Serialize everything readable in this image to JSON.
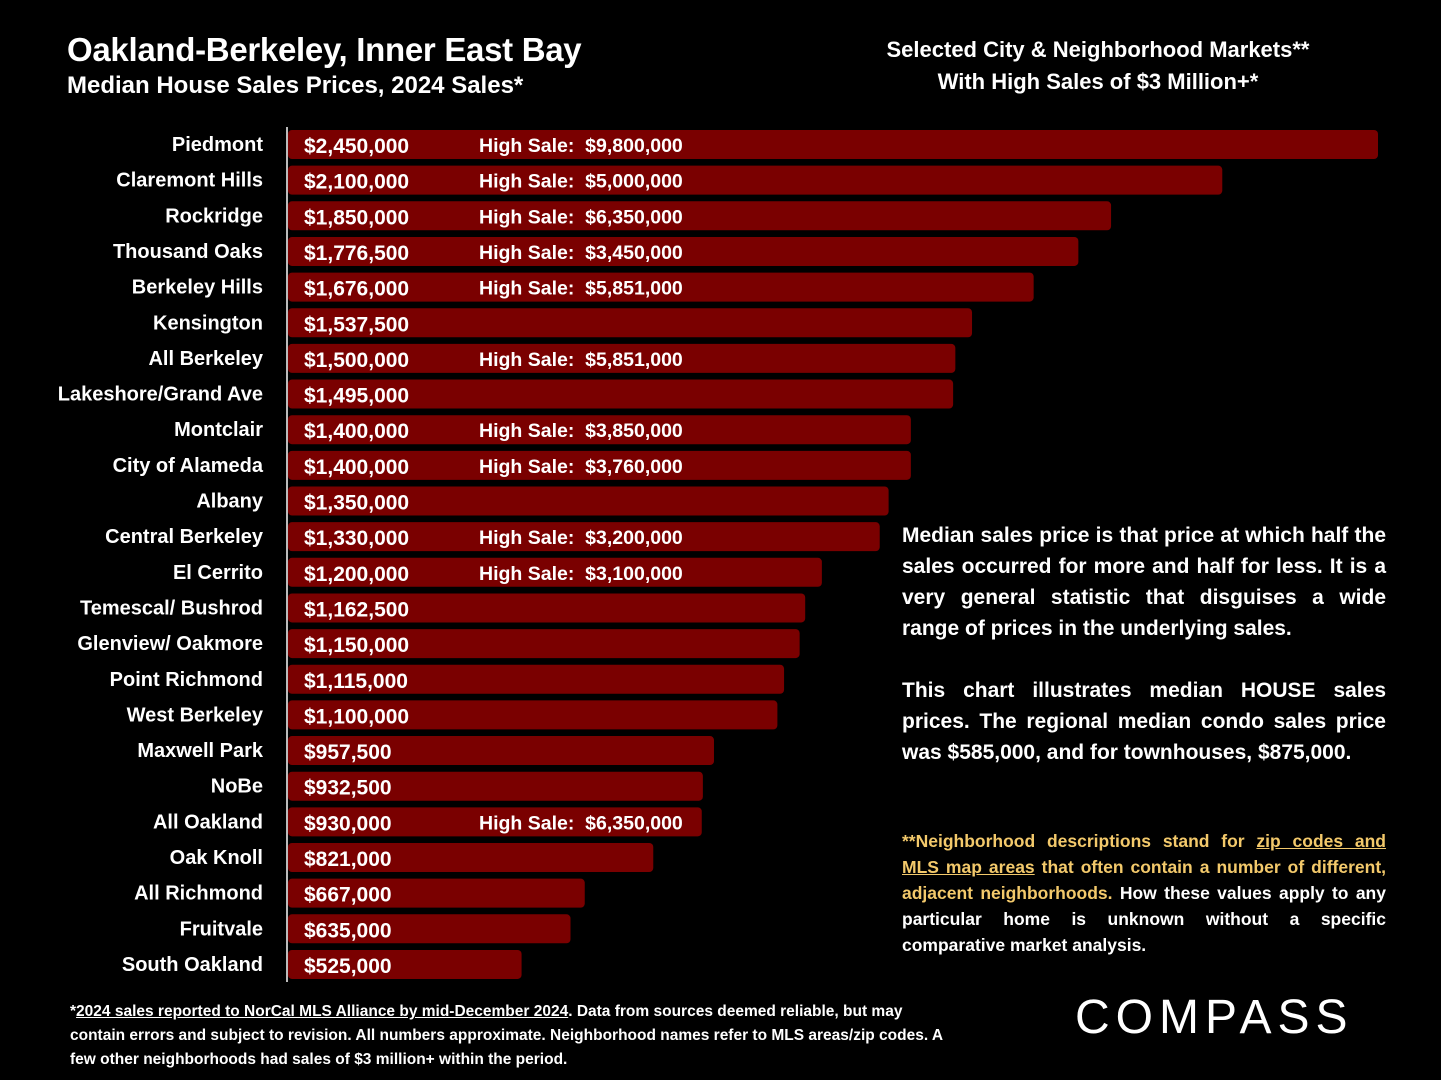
{
  "header": {
    "title": "Oakland-Berkeley, Inner East Bay",
    "subtitle": "Median House Sales Prices, 2024 Sales*",
    "right_line1": "Selected City & Neighborhood Markets**",
    "right_line2": "With High Sales of $3 Million+*"
  },
  "colors": {
    "bar": "#7a0000",
    "background": "#000000",
    "text": "#ffffff",
    "highlight": "#f3c96b"
  },
  "chart_data": {
    "type": "bar",
    "orientation": "horizontal",
    "categories": [
      "Piedmont",
      "Claremont Hills",
      "Rockridge",
      "Thousand Oaks",
      "Berkeley Hills",
      "Kensington",
      "All Berkeley",
      "Lakeshore/Grand Ave",
      "Montclair",
      "City of Alameda",
      "Albany",
      "Central Berkeley",
      "El Cerrito",
      "Temescal/ Bushrod",
      "Glenview/ Oakmore",
      "Point Richmond",
      "West Berkeley",
      "Maxwell Park",
      "NoBe",
      "All Oakland",
      "Oak Knoll",
      "All Richmond",
      "Fruitvale",
      "South Oakland"
    ],
    "values": [
      2450000,
      2100000,
      1850000,
      1776500,
      1676000,
      1537500,
      1500000,
      1495000,
      1400000,
      1400000,
      1350000,
      1330000,
      1200000,
      1162500,
      1150000,
      1115000,
      1100000,
      957500,
      932500,
      930000,
      821000,
      667000,
      635000,
      525000
    ],
    "value_labels": [
      "$2,450,000",
      "$2,100,000",
      "$1,850,000",
      "$1,776,500",
      "$1,676,000",
      "$1,537,500",
      "$1,500,000",
      "$1,495,000",
      "$1,400,000",
      "$1,400,000",
      "$1,350,000",
      "$1,330,000",
      "$1,200,000",
      "$1,162,500",
      "$1,150,000",
      "$1,115,000",
      "$1,100,000",
      "$957,500",
      "$932,500",
      "$930,000",
      "$821,000",
      "$667,000",
      "$635,000",
      "$525,000"
    ],
    "high_sales": [
      "High Sale:  $9,800,000",
      "High Sale:  $5,000,000",
      "High Sale:  $6,350,000",
      "High Sale:  $3,450,000",
      "High Sale:  $5,851,000",
      "",
      "High Sale:  $5,851,000",
      "",
      "High Sale:  $3,850,000",
      "High Sale:  $3,760,000",
      "",
      "High Sale:  $3,200,000",
      "High Sale:  $3,100,000",
      "",
      "",
      "",
      "",
      "",
      "",
      "High Sale:  $6,350,000",
      "",
      "",
      "",
      ""
    ],
    "xlim": [
      0,
      2450000
    ],
    "grid": false,
    "legend": "none"
  },
  "notes": {
    "p1": "Median sales price is that price at which half the sales occurred for more and half for less. It is a very general statistic that disguises a wide range of prices in the underlying sales.",
    "p2": "This chart illustrates median HOUSE sales prices. The regional median condo sales price was $585,000, and for townhouses, $875,000.",
    "small_a": "**Neighborhood descriptions stand for ",
    "small_b": "zip codes and MLS map areas",
    "small_c": " that often contain a number of different, adjacent neighborhoods.",
    "small_d": " How these values apply to any particular home is unknown without a specific comparative market analysis."
  },
  "footnote": {
    "star": "*",
    "link": "2024 sales reported to NorCal MLS Alliance by mid-December 2024",
    "rest": ". Data from sources deemed reliable, but may contain errors and subject to revision. All numbers approximate. Neighborhood names refer to MLS areas/zip codes. A few other neighborhoods had sales of $3 million+ within the period."
  },
  "logo": {
    "text": "COMPASS"
  }
}
